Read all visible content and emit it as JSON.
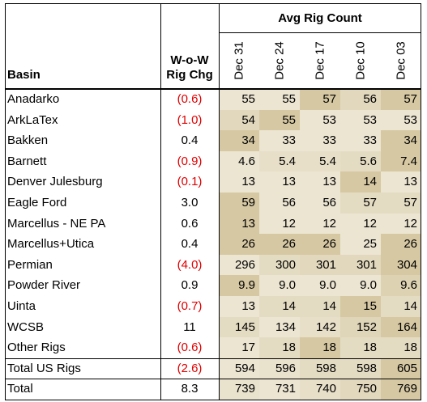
{
  "header": {
    "basin_label": "Basin",
    "change_label_line1": "W-o-W",
    "change_label_line2": "Rig Chg",
    "group_label": "Avg Rig Count",
    "dates": [
      "Dec 31",
      "Dec 24",
      "Dec 17",
      "Dec 10",
      "Dec 03"
    ]
  },
  "chart_data": {
    "type": "table",
    "title": "Avg Rig Count",
    "columns": [
      "Basin",
      "W-o-W Rig Chg",
      "Dec 31",
      "Dec 24",
      "Dec 17",
      "Dec 10",
      "Dec 03"
    ],
    "rows": [
      {
        "basin": "Anadarko",
        "change": "(0.6)",
        "neg": true,
        "values": [
          "55",
          "55",
          "57",
          "56",
          "57"
        ],
        "shade": [
          0.15,
          0.15,
          0.6,
          0.35,
          0.6
        ]
      },
      {
        "basin": "ArkLaTex",
        "change": "(1.0)",
        "neg": true,
        "values": [
          "54",
          "55",
          "53",
          "53",
          "53"
        ],
        "shade": [
          0.35,
          0.6,
          0.15,
          0.15,
          0.15
        ]
      },
      {
        "basin": "Bakken",
        "change": "0.4",
        "neg": false,
        "values": [
          "34",
          "33",
          "33",
          "33",
          "34"
        ],
        "shade": [
          0.6,
          0.15,
          0.15,
          0.15,
          0.6
        ]
      },
      {
        "basin": "Barnett",
        "change": "(0.9)",
        "neg": true,
        "values": [
          "4.6",
          "5.4",
          "5.4",
          "5.6",
          "7.4"
        ],
        "shade": [
          0.15,
          0.25,
          0.25,
          0.3,
          0.6
        ]
      },
      {
        "basin": "Denver Julesburg",
        "change": "(0.1)",
        "neg": true,
        "values": [
          "13",
          "13",
          "13",
          "14",
          "13"
        ],
        "shade": [
          0.15,
          0.15,
          0.15,
          0.6,
          0.15
        ]
      },
      {
        "basin": "Eagle Ford",
        "change": "3.0",
        "neg": false,
        "values": [
          "59",
          "56",
          "56",
          "57",
          "57"
        ],
        "shade": [
          0.6,
          0.15,
          0.15,
          0.3,
          0.3
        ]
      },
      {
        "basin": "Marcellus - NE PA",
        "change": "0.6",
        "neg": false,
        "values": [
          "13",
          "12",
          "12",
          "12",
          "12"
        ],
        "shade": [
          0.6,
          0.15,
          0.15,
          0.15,
          0.15
        ]
      },
      {
        "basin": "Marcellus+Utica",
        "change": "0.4",
        "neg": false,
        "values": [
          "26",
          "26",
          "26",
          "25",
          "26"
        ],
        "shade": [
          0.6,
          0.6,
          0.6,
          0.15,
          0.6
        ]
      },
      {
        "basin": "Permian",
        "change": "(4.0)",
        "neg": true,
        "values": [
          "296",
          "300",
          "301",
          "301",
          "304"
        ],
        "shade": [
          0.15,
          0.3,
          0.35,
          0.35,
          0.6
        ]
      },
      {
        "basin": "Powder River",
        "change": "0.9",
        "neg": false,
        "values": [
          "9.9",
          "9.0",
          "9.0",
          "9.0",
          "9.6"
        ],
        "shade": [
          0.6,
          0.15,
          0.15,
          0.15,
          0.45
        ]
      },
      {
        "basin": "Uinta",
        "change": "(0.7)",
        "neg": true,
        "values": [
          "13",
          "14",
          "14",
          "15",
          "14"
        ],
        "shade": [
          0.15,
          0.3,
          0.3,
          0.6,
          0.3
        ]
      },
      {
        "basin": "WCSB",
        "change": "11",
        "neg": false,
        "values": [
          "145",
          "134",
          "142",
          "152",
          "164"
        ],
        "shade": [
          0.3,
          0.15,
          0.25,
          0.4,
          0.6
        ]
      },
      {
        "basin": "Other Rigs",
        "change": "(0.6)",
        "neg": true,
        "values": [
          "17",
          "18",
          "18",
          "18",
          "18"
        ],
        "shade": [
          0.15,
          0.3,
          0.6,
          0.3,
          0.3
        ]
      },
      {
        "basin": "Total US Rigs",
        "change": "(2.6)",
        "neg": true,
        "values": [
          "594",
          "596",
          "598",
          "598",
          "605"
        ],
        "shade": [
          0.15,
          0.2,
          0.3,
          0.3,
          0.6
        ]
      },
      {
        "basin": "Total",
        "change": "8.3",
        "neg": false,
        "values": [
          "739",
          "731",
          "740",
          "750",
          "769"
        ],
        "shade": [
          0.2,
          0.15,
          0.25,
          0.35,
          0.6
        ]
      }
    ],
    "colors": {
      "low": "#f3efe2",
      "high": "#c2ae78",
      "negative_text": "#e00000"
    }
  }
}
